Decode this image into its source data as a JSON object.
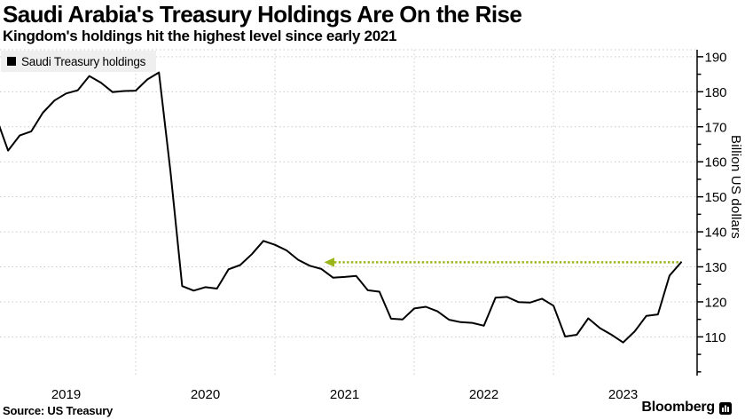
{
  "header": {
    "title": "Saudi Arabia's Treasury Holdings Are On the Rise",
    "subtitle": "Kingdom's holdings hit the highest level since early 2021"
  },
  "legend": {
    "label": "Saudi Treasury holdings",
    "swatch_color": "#000000"
  },
  "footer": {
    "source_label": "Source: US Treasury",
    "brand": "Bloomberg"
  },
  "colors": {
    "line": "#000000",
    "grid": "#c9c9c9",
    "axis": "#000000",
    "annotation_green": "#9ab61b",
    "legend_bg": "#efefef"
  },
  "chart_data": {
    "type": "line",
    "title": "Saudi Arabia's Treasury Holdings Are On the Rise",
    "subtitle": "Kingdom's holdings hit the highest level since early 2021",
    "ylabel": "Billion US dollars",
    "xlabel": "",
    "x_tick_labels": [
      "2019",
      "2020",
      "2021",
      "2022",
      "2023"
    ],
    "yticks": [
      110,
      120,
      130,
      140,
      150,
      160,
      170,
      180,
      190
    ],
    "minor_ytick_step": 5,
    "ylim": [
      99.7,
      192.0
    ],
    "grid": "dotted",
    "legend_position": "top-left",
    "frequency": "monthly",
    "start_month": "2019-01",
    "end_month": "2023-12",
    "series": [
      {
        "name": "Saudi Treasury holdings",
        "color": "#000000",
        "values": [
          172.5,
          163.2,
          167.5,
          168.7,
          174.0,
          177.5,
          179.5,
          180.4,
          184.5,
          182.6,
          179.9,
          180.2,
          180.3,
          183.5,
          185.5,
          157.0,
          124.5,
          123.2,
          124.2,
          123.8,
          129.3,
          130.5,
          133.6,
          137.4,
          136.3,
          134.7,
          132.0,
          130.3,
          129.4,
          126.9,
          127.1,
          127.4,
          123.3,
          122.9,
          115.2,
          115.0,
          118.1,
          118.6,
          117.3,
          114.9,
          114.2,
          114.0,
          113.2,
          121.2,
          121.4,
          119.9,
          119.8,
          120.9,
          118.9,
          110.1,
          110.6,
          115.3,
          112.5,
          110.6,
          108.4,
          111.6,
          116.0,
          116.4,
          127.5,
          131.3
        ]
      }
    ],
    "annotation": {
      "shape": "left-pointing-dotted-arrow",
      "level": 131.3,
      "color": "#9ab61b",
      "meaning": "current level matches highest since early 2021"
    }
  }
}
